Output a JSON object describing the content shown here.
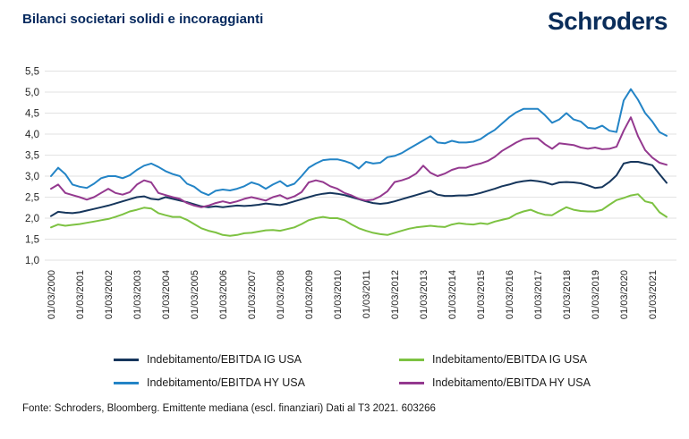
{
  "header": {
    "title": "Bilanci societari solidi e incoraggianti",
    "brand": "Schroders"
  },
  "footer": {
    "source_note": "Fonte: Schroders, Bloomberg. Emittente mediana (escl. finanziari) Dati al T3 2021. 603266"
  },
  "chart_data": {
    "type": "line",
    "title": "Bilanci societari solidi e incoraggianti",
    "xlabel": "",
    "ylabel": "",
    "ylim": [
      1.0,
      5.5
    ],
    "ytick_step": 0.5,
    "ytick_format": "comma-decimal",
    "grid": "horizontal",
    "grid_color": "#E2E2E2",
    "legend_position": "bottom-two-columns",
    "points_per_year": 4,
    "x_tick_labels": [
      "01/03/2000",
      "01/03/2001",
      "01/03/2002",
      "01/03/2003",
      "01/03/2004",
      "01/03/2005",
      "01/03/2006",
      "01/03/2007",
      "01/03/2008",
      "01/03/2009",
      "01/03/2010",
      "01/03/2011",
      "01/03/2012",
      "01/03/2013",
      "01/03/2014",
      "01/03/2015",
      "01/03/2016",
      "01/03/2017",
      "01/03/2018",
      "01/03/2019",
      "01/03/2020",
      "01/03/2021"
    ],
    "series": [
      {
        "name": "Indebitamento/EBITDA IG USA",
        "color": "#16365C",
        "legend_column": 1,
        "values": [
          2.05,
          2.15,
          2.13,
          2.12,
          2.14,
          2.18,
          2.22,
          2.26,
          2.3,
          2.35,
          2.4,
          2.45,
          2.5,
          2.52,
          2.46,
          2.44,
          2.5,
          2.46,
          2.42,
          2.38,
          2.33,
          2.28,
          2.26,
          2.28,
          2.26,
          2.28,
          2.3,
          2.29,
          2.3,
          2.32,
          2.35,
          2.33,
          2.31,
          2.35,
          2.4,
          2.45,
          2.5,
          2.55,
          2.58,
          2.6,
          2.58,
          2.55,
          2.5,
          2.45,
          2.4,
          2.36,
          2.34,
          2.36,
          2.4,
          2.45,
          2.5,
          2.55,
          2.6,
          2.65,
          2.56,
          2.53,
          2.53,
          2.54,
          2.54,
          2.56,
          2.6,
          2.65,
          2.7,
          2.76,
          2.8,
          2.85,
          2.88,
          2.9,
          2.88,
          2.85,
          2.8,
          2.85,
          2.86,
          2.85,
          2.83,
          2.78,
          2.72,
          2.74,
          2.86,
          3.02,
          3.3,
          3.34,
          3.34,
          3.3,
          3.26,
          3.05,
          2.84
        ]
      },
      {
        "name": "Indebitamento/EBITDA HY USA",
        "color": "#2384C6",
        "legend_column": 1,
        "values": [
          3.0,
          3.2,
          3.05,
          2.8,
          2.75,
          2.72,
          2.82,
          2.95,
          3.0,
          3.0,
          2.95,
          3.02,
          3.15,
          3.25,
          3.3,
          3.22,
          3.12,
          3.05,
          3.0,
          2.82,
          2.75,
          2.62,
          2.55,
          2.65,
          2.68,
          2.66,
          2.7,
          2.76,
          2.85,
          2.8,
          2.7,
          2.8,
          2.88,
          2.76,
          2.82,
          3.0,
          3.2,
          3.3,
          3.38,
          3.4,
          3.4,
          3.36,
          3.3,
          3.18,
          3.34,
          3.3,
          3.32,
          3.45,
          3.48,
          3.55,
          3.65,
          3.75,
          3.85,
          3.95,
          3.8,
          3.78,
          3.84,
          3.8,
          3.8,
          3.82,
          3.88,
          4.0,
          4.1,
          4.25,
          4.4,
          4.52,
          4.6,
          4.6,
          4.6,
          4.45,
          4.27,
          4.35,
          4.5,
          4.35,
          4.3,
          4.15,
          4.13,
          4.2,
          4.08,
          4.05,
          4.8,
          5.07,
          4.82,
          4.5,
          4.3,
          4.05,
          3.96
        ]
      },
      {
        "name": "Indebitamento/EBITDA IG USA",
        "color": "#7DC242",
        "legend_column": 2,
        "values": [
          1.78,
          1.85,
          1.82,
          1.84,
          1.86,
          1.89,
          1.92,
          1.95,
          1.98,
          2.03,
          2.09,
          2.16,
          2.2,
          2.25,
          2.23,
          2.12,
          2.07,
          2.03,
          2.03,
          1.96,
          1.86,
          1.76,
          1.7,
          1.66,
          1.6,
          1.58,
          1.6,
          1.64,
          1.65,
          1.68,
          1.71,
          1.72,
          1.7,
          1.74,
          1.78,
          1.86,
          1.95,
          2.0,
          2.03,
          2.0,
          2.0,
          1.95,
          1.85,
          1.76,
          1.7,
          1.65,
          1.62,
          1.6,
          1.65,
          1.7,
          1.75,
          1.78,
          1.8,
          1.82,
          1.8,
          1.79,
          1.85,
          1.88,
          1.86,
          1.85,
          1.88,
          1.86,
          1.92,
          1.96,
          2.0,
          2.1,
          2.16,
          2.2,
          2.13,
          2.08,
          2.07,
          2.17,
          2.26,
          2.2,
          2.17,
          2.16,
          2.16,
          2.2,
          2.32,
          2.43,
          2.48,
          2.54,
          2.57,
          2.4,
          2.36,
          2.14,
          2.03
        ]
      },
      {
        "name": "Indebitamento/EBITDA HY USA",
        "color": "#94398F",
        "legend_column": 2,
        "values": [
          2.7,
          2.8,
          2.6,
          2.55,
          2.5,
          2.44,
          2.5,
          2.6,
          2.7,
          2.6,
          2.56,
          2.62,
          2.8,
          2.9,
          2.85,
          2.6,
          2.55,
          2.5,
          2.46,
          2.36,
          2.3,
          2.26,
          2.3,
          2.36,
          2.4,
          2.36,
          2.4,
          2.46,
          2.5,
          2.46,
          2.42,
          2.5,
          2.55,
          2.46,
          2.52,
          2.62,
          2.85,
          2.9,
          2.86,
          2.76,
          2.7,
          2.6,
          2.54,
          2.46,
          2.42,
          2.44,
          2.52,
          2.64,
          2.86,
          2.9,
          2.96,
          3.06,
          3.25,
          3.08,
          3.0,
          3.06,
          3.15,
          3.2,
          3.2,
          3.26,
          3.3,
          3.36,
          3.46,
          3.6,
          3.7,
          3.8,
          3.88,
          3.9,
          3.9,
          3.76,
          3.65,
          3.78,
          3.76,
          3.74,
          3.68,
          3.65,
          3.68,
          3.64,
          3.65,
          3.7,
          4.08,
          4.4,
          3.95,
          3.62,
          3.44,
          3.32,
          3.27
        ]
      }
    ]
  }
}
